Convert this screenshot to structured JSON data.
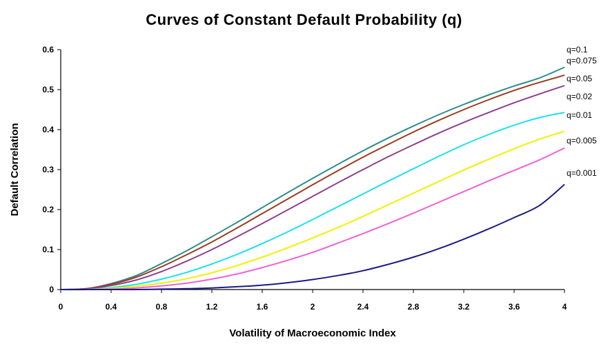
{
  "chart_data": {
    "type": "line",
    "title": "Curves of Constant Default Probability (q)",
    "xlabel": "Volatility of Macroeconomic Index",
    "ylabel": "Default Correlation",
    "xlim": [
      0,
      4
    ],
    "ylim": [
      0,
      0.6
    ],
    "x_ticks": [
      "0",
      "0.4",
      "0.8",
      "1.2",
      "1.6",
      "2",
      "2.4",
      "2.8",
      "3.2",
      "3.6",
      "4"
    ],
    "y_ticks": [
      "0",
      "0.1",
      "0.2",
      "0.3",
      "0.4",
      "0.5",
      "0.6"
    ],
    "grid": false,
    "legend": "none",
    "x": [
      0,
      0.2,
      0.4,
      0.6,
      0.8,
      1.0,
      1.2,
      1.4,
      1.6,
      1.8,
      2.0,
      2.2,
      2.4,
      2.6,
      2.8,
      3.0,
      3.2,
      3.4,
      3.6,
      3.8,
      4.0
    ],
    "series": [
      {
        "name": "q=0.1",
        "color": "#2e8b8b",
        "values": [
          0,
          0.002,
          0.015,
          0.035,
          0.065,
          0.097,
          0.132,
          0.168,
          0.205,
          0.242,
          0.278,
          0.313,
          0.347,
          0.379,
          0.409,
          0.437,
          0.463,
          0.487,
          0.509,
          0.529,
          0.556
        ]
      },
      {
        "name": "q=0.075",
        "color": "#9c3a1a",
        "values": [
          0,
          0.002,
          0.013,
          0.031,
          0.057,
          0.087,
          0.119,
          0.154,
          0.19,
          0.226,
          0.262,
          0.297,
          0.331,
          0.363,
          0.394,
          0.423,
          0.45,
          0.475,
          0.498,
          0.518,
          0.536
        ]
      },
      {
        "name": "q=0.05",
        "color": "#8e3e8e",
        "values": [
          0,
          0.001,
          0.01,
          0.024,
          0.045,
          0.071,
          0.1,
          0.132,
          0.165,
          0.199,
          0.233,
          0.267,
          0.3,
          0.332,
          0.362,
          0.391,
          0.418,
          0.443,
          0.467,
          0.489,
          0.51
        ]
      },
      {
        "name": "q=0.02",
        "color": "#19e0f0",
        "values": [
          0,
          0.0,
          0.005,
          0.013,
          0.026,
          0.043,
          0.064,
          0.088,
          0.115,
          0.144,
          0.175,
          0.207,
          0.239,
          0.271,
          0.302,
          0.333,
          0.362,
          0.388,
          0.411,
          0.43,
          0.443
        ]
      },
      {
        "name": "q=0.01",
        "color": "#f0f000",
        "values": [
          0,
          0.0,
          0.003,
          0.008,
          0.016,
          0.027,
          0.042,
          0.06,
          0.081,
          0.104,
          0.129,
          0.155,
          0.183,
          0.212,
          0.241,
          0.27,
          0.299,
          0.326,
          0.352,
          0.376,
          0.396
        ]
      },
      {
        "name": "q=0.005",
        "color": "#f060d8",
        "values": [
          0,
          0.0,
          0.001,
          0.004,
          0.009,
          0.016,
          0.026,
          0.039,
          0.055,
          0.073,
          0.093,
          0.116,
          0.14,
          0.165,
          0.191,
          0.218,
          0.245,
          0.272,
          0.298,
          0.324,
          0.354
        ]
      },
      {
        "name": "q=0.001",
        "color": "#1a1a80",
        "values": [
          0,
          0.0,
          0.0,
          0.0,
          0.001,
          0.002,
          0.004,
          0.007,
          0.011,
          0.017,
          0.025,
          0.035,
          0.047,
          0.063,
          0.081,
          0.102,
          0.126,
          0.152,
          0.18,
          0.21,
          0.263
        ]
      }
    ]
  }
}
